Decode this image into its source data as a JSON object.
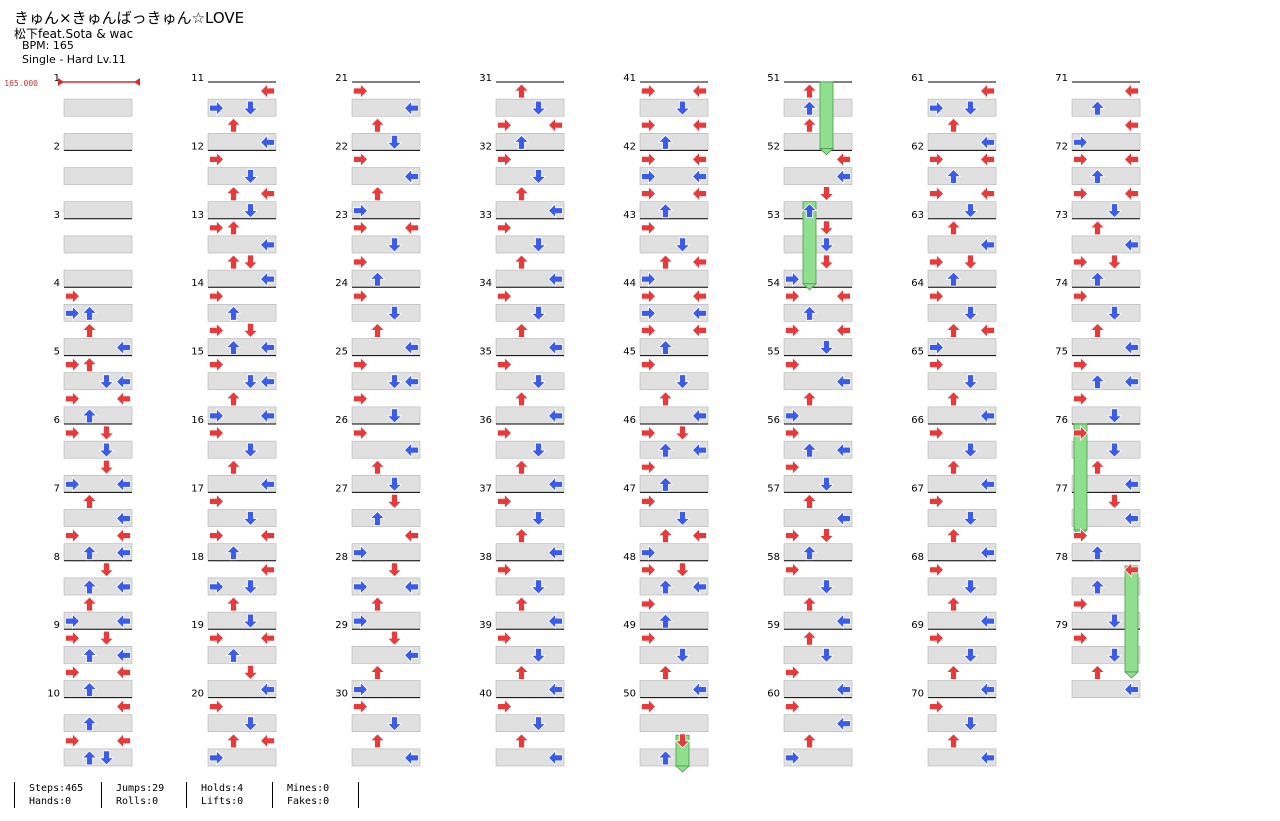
{
  "song": {
    "title": "きゅん×きゅんばっきゅん☆LOVE",
    "artist": "松下feat.Sota & wac",
    "bpm_label": "BPM: 165",
    "difficulty_label": "Single - Hard  Lv.11"
  },
  "bpm_marker": "165.000",
  "measures": {
    "count": 79,
    "per_column": 10,
    "columns": 8
  },
  "stats": [
    {
      "top": "Steps:465",
      "bottom": "Hands:0"
    },
    {
      "top": "Jumps:29",
      "bottom": "Rolls:0"
    },
    {
      "top": "Holds:4",
      "bottom": "Lifts:0"
    },
    {
      "top": "Mines:0",
      "bottom": "Fakes:0"
    }
  ],
  "colors": {
    "quarter_note": "#e83a3a",
    "eighth_note": "#3a5ce8",
    "hold": "#8ee08e",
    "lane_band": "#e0e0e0",
    "bpm_line": "#d23030"
  },
  "notes": [
    [
      4,
      0,
      0
    ],
    [
      4,
      1,
      0
    ],
    [
      4,
      1,
      1
    ],
    [
      4,
      2,
      1
    ],
    [
      4,
      3,
      3
    ],
    [
      5,
      0,
      0
    ],
    [
      5,
      0,
      1
    ],
    [
      5,
      1,
      2
    ],
    [
      5,
      1,
      3
    ],
    [
      5,
      2,
      0
    ],
    [
      5,
      2,
      3
    ],
    [
      5,
      3,
      1
    ],
    [
      6,
      0,
      0
    ],
    [
      6,
      0,
      2
    ],
    [
      6,
      1,
      2
    ],
    [
      6,
      2,
      2
    ],
    [
      6,
      3,
      0
    ],
    [
      6,
      3,
      3
    ],
    [
      7,
      0,
      1
    ],
    [
      7,
      1,
      3
    ],
    [
      7,
      2,
      0
    ],
    [
      7,
      2,
      3
    ],
    [
      7,
      3,
      1
    ],
    [
      7,
      3,
      3
    ],
    [
      8,
      0,
      2
    ],
    [
      8,
      1,
      1
    ],
    [
      8,
      1,
      3
    ],
    [
      8,
      2,
      1
    ],
    [
      8,
      3,
      0
    ],
    [
      8,
      3,
      3
    ],
    [
      9,
      0,
      0
    ],
    [
      9,
      0,
      2
    ],
    [
      9,
      1,
      1
    ],
    [
      9,
      1,
      3
    ],
    [
      9,
      2,
      0
    ],
    [
      9,
      2,
      3
    ],
    [
      9,
      3,
      1
    ],
    [
      10,
      0,
      3
    ],
    [
      10,
      1,
      1
    ],
    [
      10,
      2,
      0
    ],
    [
      10,
      2,
      3
    ],
    [
      10,
      3,
      1
    ],
    [
      10,
      3,
      2
    ],
    [
      11,
      0,
      3
    ],
    [
      11,
      1,
      0
    ],
    [
      11,
      1,
      2
    ],
    [
      11,
      2,
      1
    ],
    [
      11,
      3,
      3
    ],
    [
      12,
      0,
      0
    ],
    [
      12,
      1,
      2
    ],
    [
      12,
      2,
      1
    ],
    [
      12,
      2,
      3
    ],
    [
      12,
      3,
      2
    ],
    [
      13,
      0,
      0
    ],
    [
      13,
      0,
      1
    ],
    [
      13,
      1,
      3
    ],
    [
      13,
      2,
      1
    ],
    [
      13,
      2,
      2
    ],
    [
      13,
      3,
      3
    ],
    [
      14,
      0,
      0
    ],
    [
      14,
      1,
      1
    ],
    [
      14,
      2,
      0
    ],
    [
      14,
      2,
      2
    ],
    [
      14,
      3,
      1
    ],
    [
      14,
      3,
      3
    ],
    [
      15,
      0,
      0
    ],
    [
      15,
      1,
      2
    ],
    [
      15,
      1,
      3
    ],
    [
      15,
      2,
      1
    ],
    [
      15,
      3,
      0
    ],
    [
      15,
      3,
      3
    ],
    [
      16,
      0,
      0
    ],
    [
      16,
      1,
      2
    ],
    [
      16,
      2,
      1
    ],
    [
      16,
      3,
      3
    ],
    [
      17,
      0,
      0
    ],
    [
      17,
      1,
      2
    ],
    [
      17,
      2,
      0
    ],
    [
      17,
      2,
      3
    ],
    [
      17,
      3,
      1
    ],
    [
      18,
      0,
      3
    ],
    [
      18,
      1,
      0
    ],
    [
      18,
      1,
      2
    ],
    [
      18,
      2,
      1
    ],
    [
      18,
      3,
      2
    ],
    [
      19,
      0,
      0
    ],
    [
      19,
      0,
      3
    ],
    [
      19,
      1,
      1
    ],
    [
      19,
      2,
      2
    ],
    [
      19,
      3,
      3
    ],
    [
      20,
      0,
      0
    ],
    [
      20,
      1,
      2
    ],
    [
      20,
      2,
      1
    ],
    [
      20,
      2,
      3
    ],
    [
      20,
      3,
      0
    ],
    [
      21,
      0,
      0
    ],
    [
      21,
      1,
      3
    ],
    [
      21,
      2,
      1
    ],
    [
      21,
      3,
      2
    ],
    [
      22,
      0,
      0
    ],
    [
      22,
      1,
      3
    ],
    [
      22,
      2,
      1
    ],
    [
      22,
      3,
      0
    ],
    [
      23,
      0,
      0
    ],
    [
      23,
      0,
      3
    ],
    [
      23,
      1,
      2
    ],
    [
      23,
      2,
      0
    ],
    [
      23,
      3,
      1
    ],
    [
      24,
      0,
      0
    ],
    [
      24,
      1,
      2
    ],
    [
      24,
      2,
      1
    ],
    [
      24,
      3,
      3
    ],
    [
      25,
      0,
      0
    ],
    [
      25,
      1,
      2
    ],
    [
      25,
      1,
      3
    ],
    [
      25,
      2,
      0
    ],
    [
      25,
      3,
      2
    ],
    [
      26,
      0,
      0
    ],
    [
      26,
      1,
      3
    ],
    [
      26,
      2,
      1
    ],
    [
      26,
      3,
      2
    ],
    [
      27,
      0,
      2
    ],
    [
      27,
      1,
      1
    ],
    [
      27,
      2,
      3
    ],
    [
      27,
      3,
      0
    ],
    [
      28,
      0,
      2
    ],
    [
      28,
      1,
      0
    ],
    [
      28,
      1,
      3
    ],
    [
      28,
      2,
      1
    ],
    [
      28,
      3,
      0
    ],
    [
      29,
      0,
      2
    ],
    [
      29,
      1,
      3
    ],
    [
      29,
      2,
      1
    ],
    [
      29,
      3,
      0
    ],
    [
      30,
      0,
      0
    ],
    [
      30,
      1,
      2
    ],
    [
      30,
      2,
      1
    ],
    [
      30,
      3,
      3
    ],
    [
      31,
      0,
      1
    ],
    [
      31,
      1,
      2
    ],
    [
      31,
      2,
      0
    ],
    [
      31,
      2,
      3
    ],
    [
      31,
      3,
      1
    ],
    [
      32,
      0,
      0
    ],
    [
      32,
      1,
      2
    ],
    [
      32,
      2,
      1
    ],
    [
      32,
      3,
      3
    ],
    [
      33,
      0,
      0
    ],
    [
      33,
      1,
      2
    ],
    [
      33,
      2,
      1
    ],
    [
      33,
      3,
      3
    ],
    [
      34,
      0,
      0
    ],
    [
      34,
      1,
      2
    ],
    [
      34,
      2,
      1
    ],
    [
      34,
      3,
      3
    ],
    [
      35,
      0,
      0
    ],
    [
      35,
      1,
      2
    ],
    [
      35,
      2,
      1
    ],
    [
      35,
      3,
      3
    ],
    [
      36,
      0,
      0
    ],
    [
      36,
      1,
      2
    ],
    [
      36,
      2,
      1
    ],
    [
      36,
      3,
      3
    ],
    [
      37,
      0,
      0
    ],
    [
      37,
      1,
      2
    ],
    [
      37,
      2,
      1
    ],
    [
      37,
      3,
      3
    ],
    [
      38,
      0,
      0
    ],
    [
      38,
      1,
      2
    ],
    [
      38,
      2,
      1
    ],
    [
      38,
      3,
      3
    ],
    [
      39,
      0,
      0
    ],
    [
      39,
      1,
      2
    ],
    [
      39,
      2,
      1
    ],
    [
      39,
      3,
      3
    ],
    [
      40,
      0,
      0
    ],
    [
      40,
      1,
      2
    ],
    [
      40,
      2,
      1
    ],
    [
      40,
      3,
      3
    ],
    [
      41,
      0,
      0
    ],
    [
      41,
      0,
      3
    ],
    [
      41,
      1,
      2
    ],
    [
      41,
      2,
      0
    ],
    [
      41,
      2,
      3
    ],
    [
      41,
      3,
      1
    ],
    [
      42,
      0,
      0
    ],
    [
      42,
      0,
      3
    ],
    [
      42,
      1,
      0
    ],
    [
      42,
      1,
      3
    ],
    [
      42,
      2,
      0
    ],
    [
      42,
      2,
      3
    ],
    [
      42,
      3,
      1
    ],
    [
      43,
      0,
      0
    ],
    [
      43,
      1,
      2
    ],
    [
      43,
      2,
      1
    ],
    [
      43,
      2,
      3
    ],
    [
      43,
      3,
      0
    ],
    [
      44,
      0,
      0
    ],
    [
      44,
      0,
      3
    ],
    [
      44,
      1,
      0
    ],
    [
      44,
      1,
      3
    ],
    [
      44,
      2,
      0
    ],
    [
      44,
      2,
      3
    ],
    [
      44,
      3,
      1
    ],
    [
      45,
      0,
      0
    ],
    [
      45,
      1,
      2
    ],
    [
      45,
      2,
      1
    ],
    [
      45,
      3,
      3
    ],
    [
      46,
      0,
      0
    ],
    [
      46,
      0,
      2
    ],
    [
      46,
      1,
      1
    ],
    [
      46,
      1,
      3
    ],
    [
      46,
      2,
      0
    ],
    [
      46,
      3,
      1
    ],
    [
      47,
      0,
      0
    ],
    [
      47,
      1,
      2
    ],
    [
      47,
      2,
      1
    ],
    [
      47,
      2,
      3
    ],
    [
      47,
      3,
      0
    ],
    [
      48,
      0,
      0
    ],
    [
      48,
      0,
      2
    ],
    [
      48,
      1,
      1
    ],
    [
      48,
      1,
      3
    ],
    [
      48,
      2,
      0
    ],
    [
      48,
      3,
      1
    ],
    [
      49,
      0,
      0
    ],
    [
      49,
      1,
      2
    ],
    [
      49,
      2,
      1
    ],
    [
      49,
      3,
      3
    ],
    [
      50,
      0,
      0
    ],
    [
      50,
      2,
      2
    ],
    [
      50,
      3,
      1
    ],
    [
      51,
      0,
      1
    ],
    [
      51,
      1,
      1
    ],
    [
      51,
      2,
      1
    ],
    [
      52,
      0,
      3
    ],
    [
      52,
      1,
      3
    ],
    [
      52,
      2,
      2
    ],
    [
      52,
      3,
      1
    ],
    [
      53,
      0,
      2
    ],
    [
      53,
      1,
      2
    ],
    [
      53,
      2,
      2
    ],
    [
      53,
      3,
      0
    ],
    [
      54,
      0,
      0
    ],
    [
      54,
      0,
      3
    ],
    [
      54,
      1,
      1
    ],
    [
      54,
      2,
      0
    ],
    [
      54,
      2,
      3
    ],
    [
      54,
      3,
      2
    ],
    [
      55,
      0,
      0
    ],
    [
      55,
      1,
      3
    ],
    [
      55,
      2,
      1
    ],
    [
      55,
      3,
      0
    ],
    [
      56,
      0,
      0
    ],
    [
      56,
      1,
      1
    ],
    [
      56,
      1,
      3
    ],
    [
      56,
      2,
      0
    ],
    [
      56,
      3,
      2
    ],
    [
      57,
      0,
      1
    ],
    [
      57,
      1,
      3
    ],
    [
      57,
      2,
      0
    ],
    [
      57,
      2,
      2
    ],
    [
      57,
      3,
      1
    ],
    [
      58,
      0,
      0
    ],
    [
      58,
      1,
      2
    ],
    [
      58,
      2,
      1
    ],
    [
      58,
      3,
      3
    ],
    [
      59,
      0,
      1
    ],
    [
      59,
      1,
      2
    ],
    [
      59,
      2,
      0
    ],
    [
      59,
      3,
      3
    ],
    [
      60,
      0,
      0
    ],
    [
      60,
      1,
      3
    ],
    [
      60,
      2,
      1
    ],
    [
      60,
      3,
      0
    ],
    [
      61,
      0,
      3
    ],
    [
      61,
      1,
      0
    ],
    [
      61,
      1,
      2
    ],
    [
      61,
      2,
      1
    ],
    [
      61,
      3,
      3
    ],
    [
      62,
      0,
      0
    ],
    [
      62,
      0,
      3
    ],
    [
      62,
      1,
      1
    ],
    [
      62,
      2,
      0
    ],
    [
      62,
      2,
      3
    ],
    [
      62,
      3,
      2
    ],
    [
      63,
      0,
      1
    ],
    [
      63,
      1,
      3
    ],
    [
      63,
      2,
      0
    ],
    [
      63,
      2,
      2
    ],
    [
      63,
      3,
      1
    ],
    [
      64,
      0,
      0
    ],
    [
      64,
      1,
      2
    ],
    [
      64,
      2,
      1
    ],
    [
      64,
      2,
      3
    ],
    [
      64,
      3,
      0
    ],
    [
      65,
      0,
      0
    ],
    [
      65,
      1,
      2
    ],
    [
      65,
      2,
      1
    ],
    [
      65,
      3,
      3
    ],
    [
      66,
      0,
      0
    ],
    [
      66,
      1,
      2
    ],
    [
      66,
      2,
      1
    ],
    [
      66,
      3,
      3
    ],
    [
      67,
      0,
      0
    ],
    [
      67,
      1,
      2
    ],
    [
      67,
      2,
      1
    ],
    [
      67,
      3,
      3
    ],
    [
      68,
      0,
      0
    ],
    [
      68,
      1,
      2
    ],
    [
      68,
      2,
      1
    ],
    [
      68,
      3,
      3
    ],
    [
      69,
      0,
      0
    ],
    [
      69,
      1,
      2
    ],
    [
      69,
      2,
      1
    ],
    [
      69,
      3,
      3
    ],
    [
      70,
      0,
      0
    ],
    [
      70,
      1,
      2
    ],
    [
      70,
      2,
      1
    ],
    [
      70,
      3,
      3
    ],
    [
      71,
      0,
      3
    ],
    [
      71,
      1,
      1
    ],
    [
      71,
      2,
      3
    ],
    [
      71,
      3,
      0
    ],
    [
      72,
      0,
      0
    ],
    [
      72,
      0,
      3
    ],
    [
      72,
      1,
      1
    ],
    [
      72,
      2,
      0
    ],
    [
      72,
      2,
      3
    ],
    [
      72,
      3,
      2
    ],
    [
      73,
      0,
      1
    ],
    [
      73,
      1,
      3
    ],
    [
      73,
      2,
      0
    ],
    [
      73,
      2,
      2
    ],
    [
      73,
      3,
      1
    ],
    [
      74,
      0,
      0
    ],
    [
      74,
      1,
      2
    ],
    [
      74,
      2,
      1
    ],
    [
      74,
      3,
      3
    ],
    [
      75,
      0,
      0
    ],
    [
      75,
      1,
      1
    ],
    [
      75,
      1,
      3
    ],
    [
      75,
      2,
      0
    ],
    [
      75,
      3,
      2
    ],
    [
      76,
      0,
      0
    ],
    [
      76,
      1,
      2
    ],
    [
      76,
      2,
      1
    ],
    [
      76,
      3,
      3
    ],
    [
      77,
      0,
      2
    ],
    [
      77,
      1,
      3
    ],
    [
      77,
      2,
      0
    ],
    [
      77,
      3,
      1
    ],
    [
      78,
      0,
      3
    ],
    [
      78,
      1,
      1
    ],
    [
      78,
      2,
      0
    ],
    [
      78,
      3,
      2
    ],
    [
      79,
      0,
      0
    ],
    [
      79,
      1,
      2
    ],
    [
      79,
      2,
      1
    ],
    [
      79,
      3,
      3
    ]
  ],
  "holds": [
    {
      "measure": 51,
      "lane": 2,
      "start_beat": 0,
      "end_beat": 3.9
    },
    {
      "measure": 52,
      "lane": 1,
      "start_beat": 3,
      "end_beat": 7.8
    },
    {
      "measure": 50,
      "lane": 2,
      "start_beat": 2.2,
      "end_beat": 4
    },
    {
      "measure": 76,
      "lane": 0,
      "start_beat": 0,
      "end_beat": 6.2
    },
    {
      "measure": 78,
      "lane": 3,
      "start_beat": 0.3,
      "end_beat": 6.5
    }
  ]
}
